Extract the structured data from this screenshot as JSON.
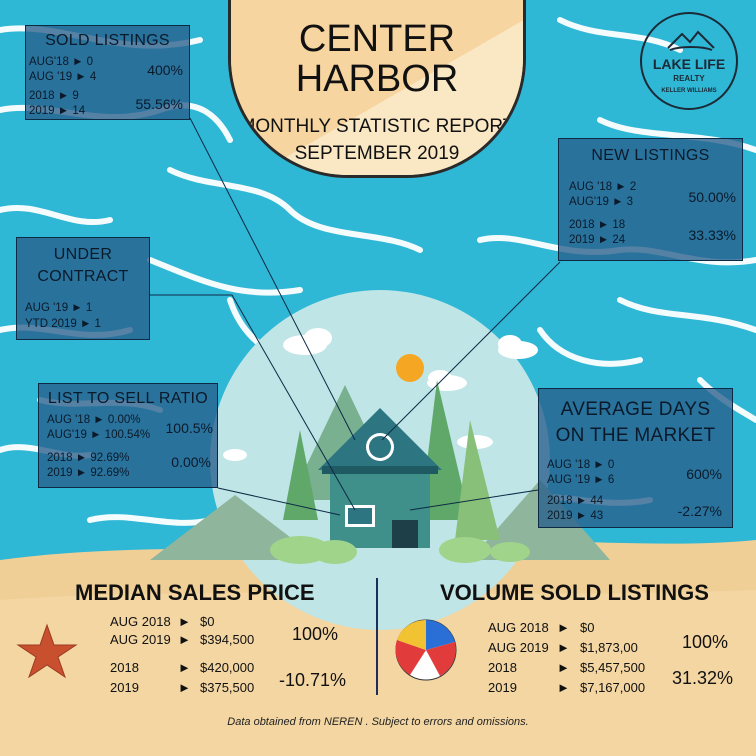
{
  "title": {
    "line1": "CENTER",
    "line2": "HARBOR",
    "line3": "MONTHLY STATISTIC REPORT",
    "line4": "SEPTEMBER 2019"
  },
  "logo": {
    "line1": "LAKE LIFE",
    "line2": "REALTY",
    "line3": "KELLER WILLIAMS",
    "icon": "mountain-lake-icon"
  },
  "sold_listings": {
    "title": "SOLD LISTINGS",
    "rows": [
      "AUG'18 ► 0",
      "AUG '19 ► 4",
      "2018 ► 9",
      "2019 ► 14"
    ],
    "pct1": "400%",
    "pct2": "55.56%"
  },
  "new_listings": {
    "title": "NEW LISTINGS",
    "rows": [
      "AUG '18 ► 2",
      "AUG'19 ► 3",
      "2018 ► 18",
      "2019 ► 24"
    ],
    "pct1": "50.00%",
    "pct2": "33.33%"
  },
  "under_contract": {
    "title1": "UNDER",
    "title2": "CONTRACT",
    "rows": [
      "AUG '19 ► 1",
      "YTD 2019 ► 1"
    ]
  },
  "list_to_sell": {
    "title": "LIST TO SELL  RATIO",
    "rows": [
      "AUG '18 ► 0.00%",
      "AUG'19 ► 100.54%",
      "2018 ► 92.69%",
      "2019 ► 92.69%"
    ],
    "pct1": "100.5%",
    "pct2": "0.00%"
  },
  "avg_days": {
    "title1": "AVERAGE DAYS",
    "title2": "ON THE MARKET",
    "rows": [
      "AUG '18 ► 0",
      "AUG '19 ► 6",
      "2018 ► 44",
      "2019 ► 43"
    ],
    "pct1": "600%",
    "pct2": "-2.27%"
  },
  "median_sales": {
    "title": "MEDIAN SALES PRICE",
    "rows": [
      {
        "label": "AUG 2018",
        "value": "$0"
      },
      {
        "label": "AUG 2019",
        "value": "$394,500"
      },
      {
        "label": "2018",
        "value": "$420,000"
      },
      {
        "label": "2019",
        "value": "$375,500"
      }
    ],
    "pct1": "100%",
    "pct2": "-10.71%"
  },
  "volume_sold": {
    "title": "VOLUME SOLD LISTINGS",
    "rows": [
      {
        "label": "AUG 2018",
        "value": "$0"
      },
      {
        "label": "AUG 2019",
        "value": "$1,873,00"
      },
      {
        "label": "2018",
        "value": "$5,457,500"
      },
      {
        "label": "2019",
        "value": "$7,167,000"
      }
    ],
    "pct1": "100%",
    "pct2": "31.32%"
  },
  "footer": "Data obtained from NEREN . Subject to errors and omissions.",
  "colors": {
    "water": "#2fb7d6",
    "sand": "#f0cf97",
    "box": "#285f8c",
    "house": "#3f8f8a"
  }
}
